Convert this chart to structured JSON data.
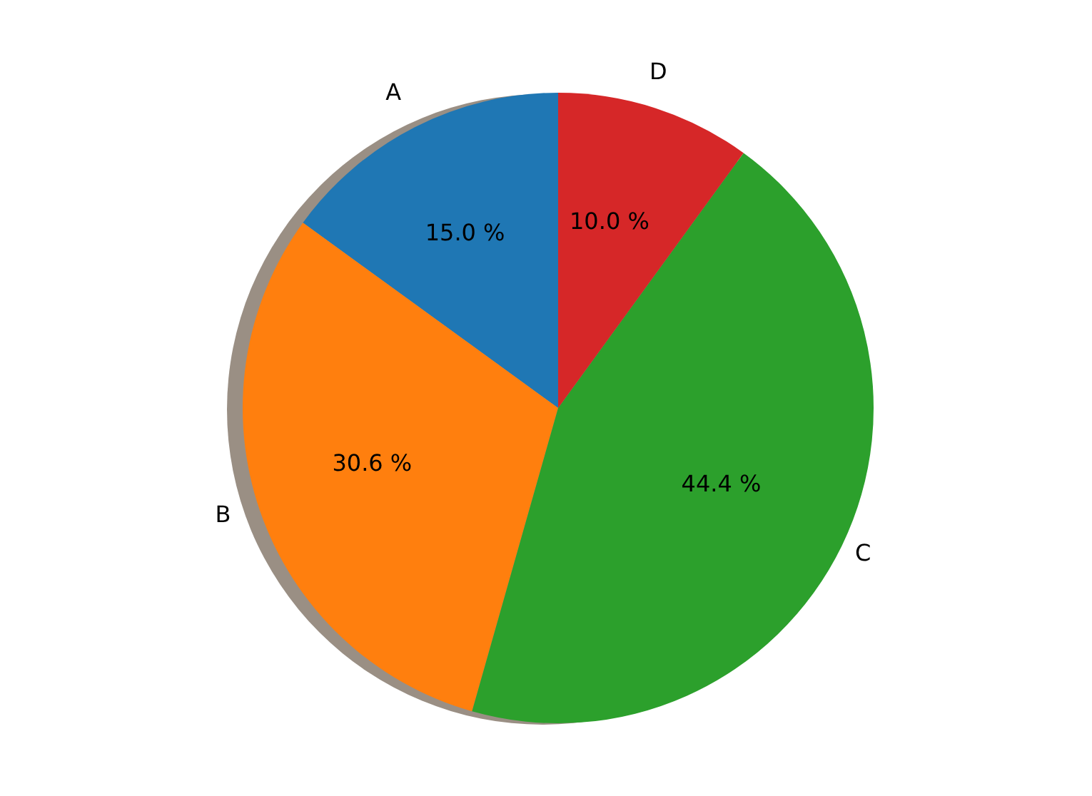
{
  "chart_data": {
    "type": "pie",
    "categories": [
      "A",
      "B",
      "C",
      "D"
    ],
    "values": [
      15.0,
      30.6,
      44.4,
      10.0
    ],
    "colors": [
      "#1f77b4",
      "#ff7f0e",
      "#2ca02c",
      "#d62728"
    ],
    "value_labels": [
      "15.0 %",
      "30.6 %",
      "44.4 %",
      "10.0 %"
    ]
  }
}
